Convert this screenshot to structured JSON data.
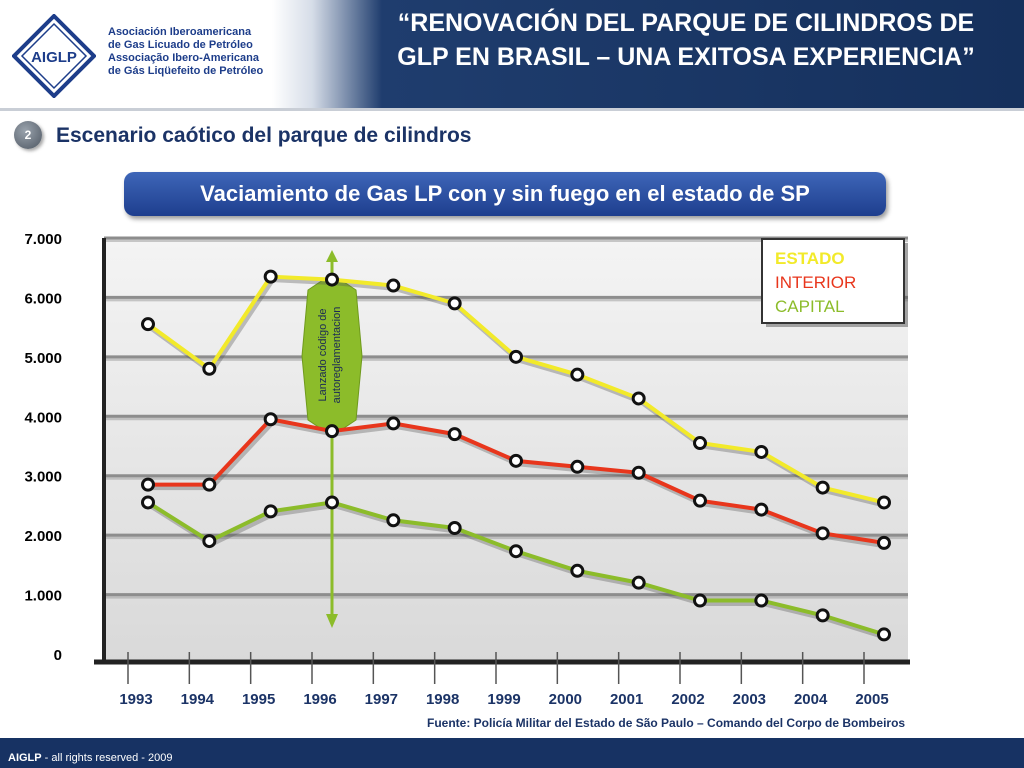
{
  "header": {
    "org_line1": "Asociación Iberoamericana",
    "org_line2": "de Gas Licuado de Petróleo",
    "org_line3": "Associação Ibero-Americana",
    "org_line4": "de Gás Liqüefeito de Petróleo",
    "logo_text": "AIGLP",
    "title_line1": "“RENOVACIÓN DEL PARQUE DE CILINDROS DE",
    "title_line2": "GLP EN BRASIL – UNA EXITOSA EXPERIENCIA”"
  },
  "section": {
    "number": "2",
    "title": "Escenario caótico del parque de cilindros"
  },
  "banner": {
    "text": "Vaciamiento de Gas LP con y sin fuego en el estado de SP"
  },
  "annotation": {
    "line1": "Lanzado código de",
    "line2": "autoreglamentacion"
  },
  "source": "Fuente: Policía Militar del Estado de São Paulo – Comando del Corpo de Bombeiros",
  "footer": {
    "brand": "AIGLP",
    "rest": " - all rights reserved - 2009"
  },
  "colors": {
    "estado": "#f2ea2a",
    "interior": "#e8361c",
    "capital": "#8cbc2a",
    "dark_blue": "#173263"
  },
  "chart_data": {
    "type": "line",
    "categories": [
      "1993",
      "1994",
      "1995",
      "1996",
      "1997",
      "1998",
      "1999",
      "2000",
      "2001",
      "2002",
      "2003",
      "2004",
      "2005"
    ],
    "y_ticks": [
      "7.000",
      "6.000",
      "5.000",
      "4.000",
      "3.000",
      "2.000",
      "1.000",
      "0"
    ],
    "y_tick_values": [
      7000,
      6000,
      5000,
      4000,
      3000,
      2000,
      1000,
      0
    ],
    "ylim": [
      0,
      7000
    ],
    "grid": true,
    "legend_placement": "top-right",
    "series": [
      {
        "name": "ESTADO",
        "color": "#f2ea2a",
        "values": [
          5550,
          4800,
          6350,
          6300,
          6200,
          5900,
          5000,
          4700,
          4300,
          3550,
          3400,
          2800,
          2550
        ]
      },
      {
        "name": "INTERIOR",
        "color": "#e8361c",
        "values": [
          2850,
          2850,
          3950,
          3750,
          3880,
          3700,
          3250,
          3150,
          3050,
          2580,
          2430,
          2030,
          1870
        ]
      },
      {
        "name": "CAPITAL",
        "color": "#8cbc2a",
        "values": [
          2550,
          1900,
          2400,
          2550,
          2250,
          2120,
          1730,
          1400,
          1200,
          900,
          900,
          650,
          330
        ]
      }
    ],
    "annotation_year": "1996"
  }
}
